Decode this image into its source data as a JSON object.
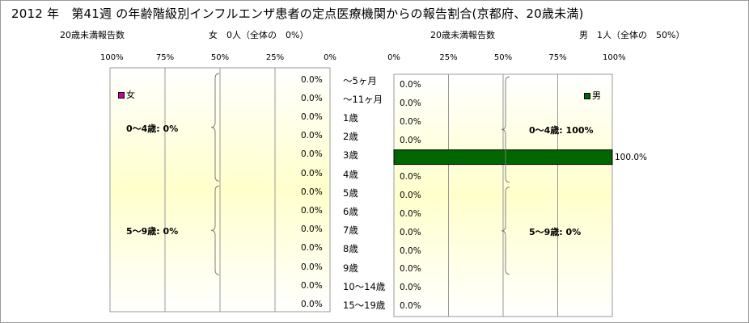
{
  "header": {
    "title": "2012 年　第41週 の年齢階級別インフルエンザ患者の定点医療機関からの報告割合(京都府、20歳未満)",
    "female_label": "20歳未満報告数",
    "female_summary": "女　0人（全体の　0%）",
    "male_label": "20歳未満報告数",
    "male_summary": "男　1人（全体の　50%）"
  },
  "colors": {
    "female": "#cc0099",
    "male": "#006600",
    "panel_fill": "#ffffcc"
  },
  "chart_data": [
    {
      "type": "bar",
      "orientation": "horizontal",
      "direction": "right-to-left",
      "legend": "女",
      "legend_placement": "top-left",
      "categories": [
        "～5ヶ月",
        "～11ヶ月",
        "1歳",
        "2歳",
        "3歳",
        "4歳",
        "5歳",
        "6歳",
        "7歳",
        "8歳",
        "9歳",
        "10～14歳",
        "15～19歳"
      ],
      "values": [
        0,
        0,
        0,
        0,
        0,
        0,
        0,
        0,
        0,
        0,
        0,
        0,
        0
      ],
      "value_labels": [
        "0.0%",
        "0.0%",
        "0.0%",
        "0.0%",
        "0.0%",
        "0.0%",
        "0.0%",
        "0.0%",
        "0.0%",
        "0.0%",
        "0.0%",
        "0.0%",
        "0.0%"
      ],
      "xlim": [
        0,
        100
      ],
      "x_ticks": [
        "100%",
        "75%",
        "50%",
        "25%",
        "0%"
      ],
      "grid": true,
      "groups": [
        {
          "label": "0～4歳:  0%",
          "from": 0,
          "to": 5
        },
        {
          "label": "5～9歳:  0%",
          "from": 6,
          "to": 10
        }
      ]
    },
    {
      "type": "bar",
      "orientation": "horizontal",
      "direction": "left-to-right",
      "legend": "男",
      "legend_placement": "top-right",
      "categories": [
        "～5ヶ月",
        "～11ヶ月",
        "1歳",
        "2歳",
        "3歳",
        "4歳",
        "5歳",
        "6歳",
        "7歳",
        "8歳",
        "9歳",
        "10～14歳",
        "15～19歳"
      ],
      "values": [
        0,
        0,
        0,
        0,
        100,
        0,
        0,
        0,
        0,
        0,
        0,
        0,
        0
      ],
      "value_labels": [
        "0.0%",
        "0.0%",
        "0.0%",
        "0.0%",
        "100.0%",
        "0.0%",
        "0.0%",
        "0.0%",
        "0.0%",
        "0.0%",
        "0.0%",
        "0.0%",
        "0.0%"
      ],
      "xlim": [
        0,
        100
      ],
      "x_ticks": [
        "0%",
        "25%",
        "50%",
        "75%",
        "100%"
      ],
      "grid": true,
      "groups": [
        {
          "label": "0～4歳: 100%",
          "from": 0,
          "to": 5
        },
        {
          "label": "5～9歳:  0%",
          "from": 6,
          "to": 10
        }
      ]
    }
  ]
}
